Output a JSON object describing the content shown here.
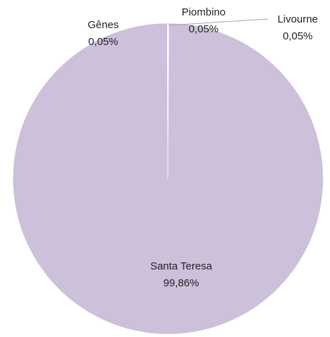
{
  "chart_data": {
    "type": "pie",
    "categories": [
      "Santa Teresa",
      "Gênes",
      "Piombino",
      "Livourne"
    ],
    "values": [
      99.86,
      0.05,
      0.05,
      0.05
    ],
    "value_labels": [
      "99,86%",
      "0,05%",
      "0,05%",
      "0,05%"
    ],
    "colors": {
      "slice": "#ccc0da",
      "slice_edge": "#ffffff",
      "leader_line": "#a6a6a6"
    },
    "legend": "none"
  }
}
